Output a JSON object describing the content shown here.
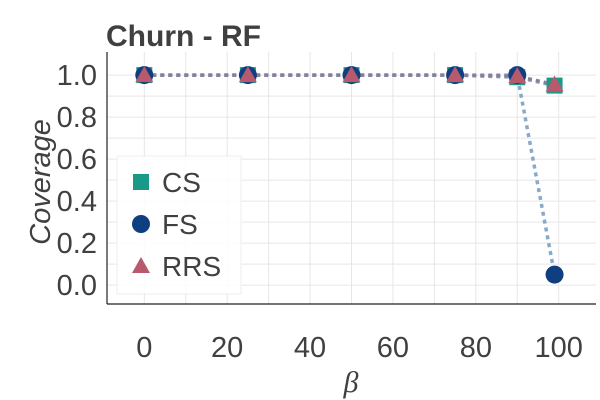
{
  "chart_data": {
    "type": "line",
    "title": "Churn - RF",
    "xlabel": "β",
    "ylabel": "Coverage",
    "x": [
      0,
      25,
      50,
      75,
      90,
      99
    ],
    "xlim": [
      -9,
      109
    ],
    "ylim": [
      -0.09,
      1.11
    ],
    "xticks": [
      "0",
      "20",
      "40",
      "60",
      "80",
      "100"
    ],
    "yticks": [
      "0.0",
      "0.2",
      "0.4",
      "0.6",
      "0.8",
      "1.0"
    ],
    "grid": true,
    "legend_position": "left",
    "series": [
      {
        "name": "CS",
        "marker": "square",
        "color": "#1a9988",
        "values": [
          1.0,
          1.0,
          1.0,
          1.0,
          0.99,
          0.95
        ]
      },
      {
        "name": "FS",
        "marker": "circle",
        "color": "#0f3f80",
        "values": [
          1.0,
          1.0,
          1.0,
          1.0,
          1.0,
          0.05
        ]
      },
      {
        "name": "RRS",
        "marker": "triangle",
        "color": "#b85a6e",
        "values": [
          1.0,
          1.0,
          1.0,
          1.0,
          0.995,
          0.955
        ]
      }
    ],
    "line_color": "#7aa0c4"
  }
}
